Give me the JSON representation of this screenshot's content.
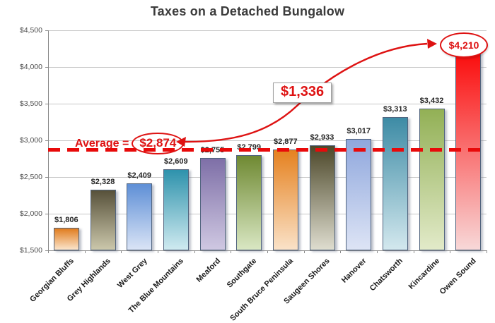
{
  "title": "Taxes on a Detached Bungalow",
  "chart_data": {
    "type": "bar",
    "title": "Taxes on a Detached Bungalow",
    "categories": [
      "Georgian Bluffs",
      "Grey Highlands",
      "West Grey",
      "The Blue Mountains",
      "Meaford",
      "Southgate",
      "South Bruce Peninsula",
      "Saugeen Shores",
      "Hanover",
      "Chatsworth",
      "Kincardine",
      "Owen Sound"
    ],
    "values": [
      1806,
      2328,
      2409,
      2609,
      2755,
      2799,
      2877,
      2933,
      3017,
      3313,
      3432,
      4210
    ],
    "value_labels": [
      "$1,806",
      "$2,328",
      "$2,409",
      "$2,609",
      "$2,755",
      "$2,799",
      "$2,877",
      "$2,933",
      "$3,017",
      "$3,313",
      "$3,432",
      "$4,210"
    ],
    "bar_colors": [
      {
        "top": "#e07c1e",
        "bottom": "#fbe5cb"
      },
      {
        "top": "#57513a",
        "bottom": "#cbc7ab"
      },
      {
        "top": "#5e8fd6",
        "bottom": "#dae4f6"
      },
      {
        "top": "#2e92ac",
        "bottom": "#cfeaf0"
      },
      {
        "top": "#7e6fa7",
        "bottom": "#cfc8e2"
      },
      {
        "top": "#6f8932",
        "bottom": "#d9e7c3"
      },
      {
        "top": "#e5811f",
        "bottom": "#fae2c8"
      },
      {
        "top": "#4c4729",
        "bottom": "#deddcf"
      },
      {
        "top": "#8fa7dd",
        "bottom": "#dde4f5"
      },
      {
        "top": "#3d8ba5",
        "bottom": "#d3e8ee"
      },
      {
        "top": "#92b055",
        "bottom": "#e2eac9"
      },
      {
        "top": "#fa0c0c",
        "bottom": "#f8d8d8"
      }
    ],
    "ylim": [
      1500,
      4500
    ],
    "ytick_step": 500,
    "ytick_labels": [
      "$1,500",
      "$2,000",
      "$2,500",
      "$3,000",
      "$3,500",
      "$4,000",
      "$4,500"
    ],
    "grid": true,
    "legend": false,
    "average_line": {
      "value": 2874,
      "label_prefix": "Average =",
      "label_value": "$2,874",
      "line_color": "#e80a0a"
    },
    "annotations": {
      "difference_label": "$1,336",
      "max_value_label": "$4,210",
      "max_label_bar_index": 11
    }
  },
  "colors": {
    "accent_red": "#de1212",
    "title_text": "#3b3b3b",
    "gridline": "#c6c6c6",
    "axis": "#8a8a8a"
  }
}
